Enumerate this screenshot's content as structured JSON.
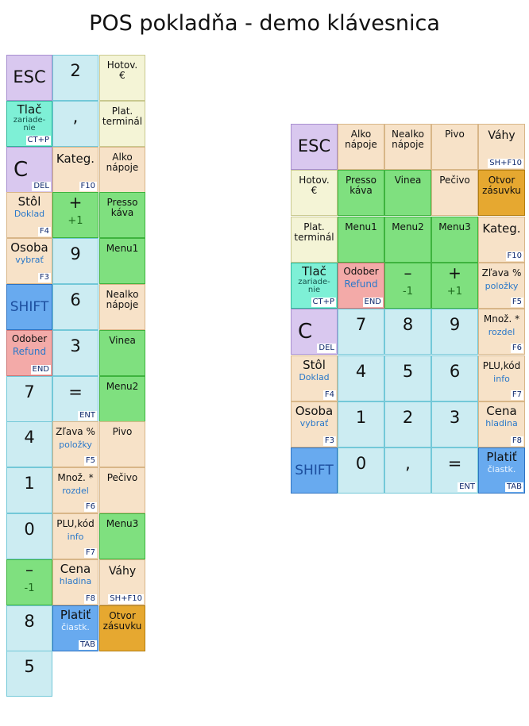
{
  "title": "POS pokladňa - demo klávesnica",
  "keys": {
    "esc": {
      "main": "ESC"
    },
    "tlac": {
      "main": "Tlač",
      "sub": "zariade-\nnie",
      "code": "CT+P"
    },
    "c": {
      "main": "C",
      "code": "DEL"
    },
    "stol": {
      "main": "Stôl",
      "sub": "Doklad",
      "code": "F4"
    },
    "osoba": {
      "main": "Osoba",
      "sub": "vybrať",
      "code": "F3"
    },
    "shift": {
      "main": "SHIFT"
    },
    "odober": {
      "main": "Odober",
      "sub": "Refund",
      "code": "END"
    },
    "n7": {
      "main": "7"
    },
    "n4": {
      "main": "4"
    },
    "n1": {
      "main": "1"
    },
    "n0": {
      "main": "0"
    },
    "minus": {
      "main": "–",
      "sub": "-1"
    },
    "n8": {
      "main": "8"
    },
    "n5": {
      "main": "5"
    },
    "n2": {
      "main": "2"
    },
    "comma": {
      "main": ","
    },
    "kateg": {
      "main": "Kateg.",
      "code": "F10"
    },
    "plus": {
      "main": "+",
      "sub": "+1"
    },
    "n9": {
      "main": "9"
    },
    "n6": {
      "main": "6"
    },
    "n3": {
      "main": "3"
    },
    "eq": {
      "main": "=",
      "code": "ENT"
    },
    "zlava": {
      "main": "Zľava %",
      "sub": "položky",
      "code": "F5"
    },
    "mnoz": {
      "main": "Množ. *",
      "sub": "rozdel",
      "code": "F6"
    },
    "plu": {
      "main": "PLU,kód",
      "sub": "info",
      "code": "F7"
    },
    "cena": {
      "main": "Cena",
      "sub": "hladina",
      "code": "F8"
    },
    "platit": {
      "main": "Platiť",
      "sub": "čiastk.",
      "code": "TAB"
    },
    "hotov": {
      "main": "Hotov.\n€"
    },
    "plat_term": {
      "main": "Plat.\nterminál"
    },
    "alko": {
      "main": "Alko\nnápoje"
    },
    "presso": {
      "main": "Presso\nkáva"
    },
    "menu1": {
      "main": "Menu1"
    },
    "nealko": {
      "main": "Nealko\nnápoje"
    },
    "vinea": {
      "main": "Vinea"
    },
    "menu2": {
      "main": "Menu2"
    },
    "pivo": {
      "main": "Pivo"
    },
    "pecivo": {
      "main": "Pečivo"
    },
    "menu3": {
      "main": "Menu3"
    },
    "vahy": {
      "main": "Váhy",
      "code": "SH+F10"
    },
    "otvor": {
      "main": "Otvor\nzásuvku"
    }
  }
}
